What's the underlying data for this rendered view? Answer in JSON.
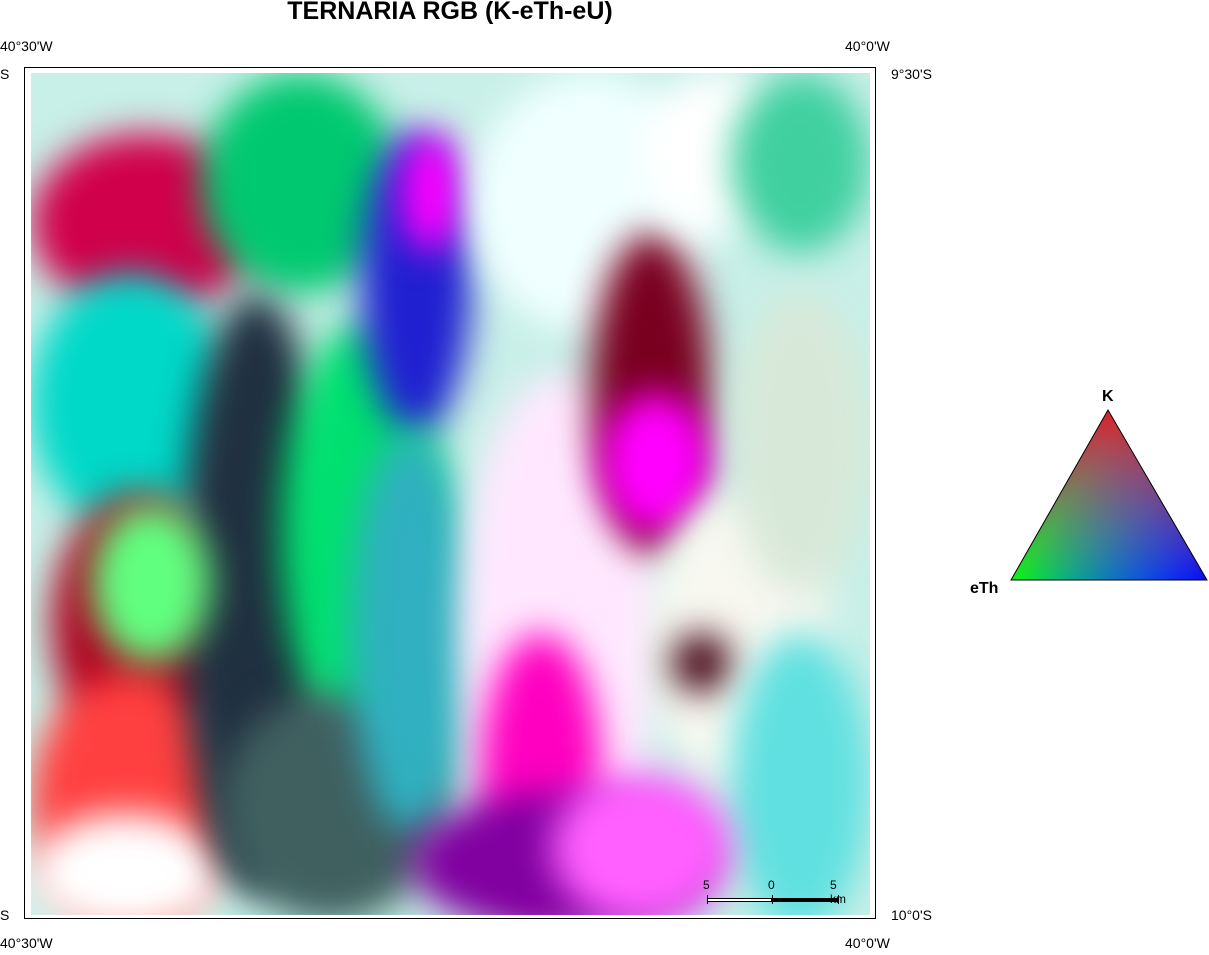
{
  "title": "TERNARIA RGB (K-eTh-eU)",
  "coords": {
    "top_left_lon": "40°30'W",
    "top_right_lon": "40°0'W",
    "bottom_left_lon": "40°30'W",
    "bottom_right_lon": "40°0'W",
    "top_left_lat": "S",
    "top_right_lat": "9°30'S",
    "bottom_left_lat": "S",
    "bottom_right_lat": "10°0'S"
  },
  "scale_bar": {
    "left": "5",
    "mid": "0",
    "right": "5 km"
  },
  "legend": {
    "top_label": "K",
    "left_label": "eTh",
    "colors": {
      "K": "#ff0000",
      "eTh": "#00ff00",
      "eU": "#0000ff"
    }
  }
}
